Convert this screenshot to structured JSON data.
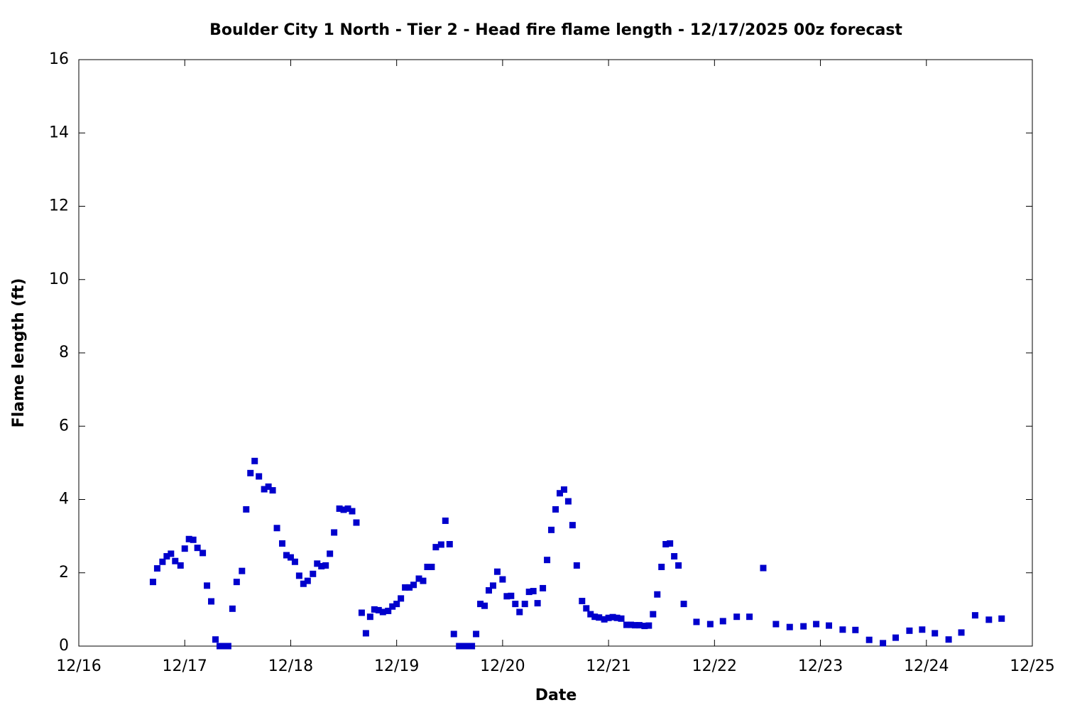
{
  "chart_data": {
    "type": "scatter",
    "title": "Boulder City 1 North - Tier 2 - Head fire flame length - 12/17/2025 00z forecast",
    "x_label": "Date",
    "y_label": "Flame length (ft)",
    "color": "#0000cc",
    "x": [
      16.7,
      16.74,
      16.79,
      16.83,
      16.87,
      16.91,
      16.96,
      17.0,
      17.04,
      17.08,
      17.12,
      17.17,
      17.21,
      17.25,
      17.29,
      17.33,
      17.37,
      17.41,
      17.45,
      17.49,
      17.54,
      17.58,
      17.62,
      17.66,
      17.7,
      17.75,
      17.79,
      17.83,
      17.87,
      17.92,
      17.96,
      18.0,
      18.04,
      18.08,
      18.12,
      18.16,
      18.21,
      18.25,
      18.29,
      18.33,
      18.37,
      18.41,
      18.46,
      18.5,
      18.54,
      18.58,
      18.62,
      18.67,
      18.71,
      18.75,
      18.79,
      18.83,
      18.87,
      18.92,
      18.96,
      19.0,
      19.04,
      19.08,
      19.12,
      19.16,
      19.21,
      19.25,
      19.29,
      19.33,
      19.37,
      19.42,
      19.46,
      19.5,
      19.54,
      19.59,
      19.63,
      19.67,
      19.71,
      19.75,
      19.79,
      19.83,
      19.87,
      19.91,
      19.95,
      20.0,
      20.04,
      20.08,
      20.12,
      20.16,
      20.21,
      20.25,
      20.29,
      20.33,
      20.38,
      20.42,
      20.46,
      20.5,
      20.54,
      20.58,
      20.62,
      20.66,
      20.7,
      20.75,
      20.79,
      20.83,
      20.87,
      20.91,
      20.96,
      21.0,
      21.04,
      21.08,
      21.12,
      21.17,
      21.21,
      21.25,
      21.29,
      21.34,
      21.38,
      21.42,
      21.46,
      21.5,
      21.54,
      21.58,
      21.62,
      21.66,
      21.71,
      21.83,
      21.96,
      22.08,
      22.21,
      22.33,
      22.46,
      22.58,
      22.71,
      22.84,
      22.96,
      23.08,
      23.21,
      23.33,
      23.46,
      23.59,
      23.71,
      23.84,
      23.96,
      24.08,
      24.21,
      24.33,
      24.46,
      24.59,
      24.71
    ],
    "values": [
      1.75,
      2.12,
      2.3,
      2.45,
      2.52,
      2.32,
      2.2,
      2.66,
      2.92,
      2.9,
      2.68,
      2.54,
      1.65,
      1.22,
      0.18,
      0,
      0,
      0,
      1.02,
      1.75,
      2.05,
      3.73,
      4.72,
      5.05,
      4.63,
      4.28,
      4.35,
      4.25,
      3.22,
      2.8,
      2.48,
      2.42,
      2.3,
      1.92,
      1.7,
      1.78,
      1.97,
      2.25,
      2.18,
      2.2,
      2.52,
      3.1,
      3.75,
      3.72,
      3.75,
      3.68,
      3.37,
      0.91,
      0.35,
      0.8,
      1.0,
      0.98,
      0.93,
      0.96,
      1.08,
      1.15,
      1.3,
      1.6,
      1.6,
      1.67,
      1.84,
      1.78,
      2.16,
      2.16,
      2.7,
      2.77,
      3.42,
      2.78,
      0.33,
      0,
      0,
      0,
      0,
      0.33,
      1.15,
      1.1,
      1.52,
      1.65,
      2.03,
      1.82,
      1.36,
      1.37,
      1.15,
      0.93,
      1.15,
      1.48,
      1.5,
      1.17,
      1.58,
      2.35,
      3.17,
      3.73,
      4.17,
      4.27,
      3.95,
      3.3,
      2.2,
      1.23,
      1.03,
      0.87,
      0.8,
      0.78,
      0.73,
      0.77,
      0.79,
      0.77,
      0.75,
      0.58,
      0.58,
      0.57,
      0.57,
      0.55,
      0.56,
      0.87,
      1.41,
      2.16,
      2.78,
      2.8,
      2.45,
      2.2,
      1.15,
      0.66,
      0.6,
      0.68,
      0.8,
      0.8,
      2.13,
      0.6,
      0.52,
      0.54,
      0.6,
      0.56,
      0.45,
      0.44,
      0.17,
      0.08,
      0.23,
      0.42,
      0.45,
      0.35,
      0.18,
      0.37,
      0.84,
      0.72,
      0.75
    ],
    "xlim": [
      16,
      25
    ],
    "xticks": [
      {
        "value": 16,
        "label": "12/16"
      },
      {
        "value": 17,
        "label": "12/17"
      },
      {
        "value": 18,
        "label": "12/18"
      },
      {
        "value": 19,
        "label": "12/19"
      },
      {
        "value": 20,
        "label": "12/20"
      },
      {
        "value": 21,
        "label": "12/21"
      },
      {
        "value": 22,
        "label": "12/22"
      },
      {
        "value": 23,
        "label": "12/23"
      },
      {
        "value": 24,
        "label": "12/24"
      },
      {
        "value": 25,
        "label": "12/25"
      }
    ],
    "ylim": [
      0,
      16
    ],
    "yticks": [
      0,
      2,
      4,
      6,
      8,
      10,
      12,
      14,
      16
    ]
  }
}
